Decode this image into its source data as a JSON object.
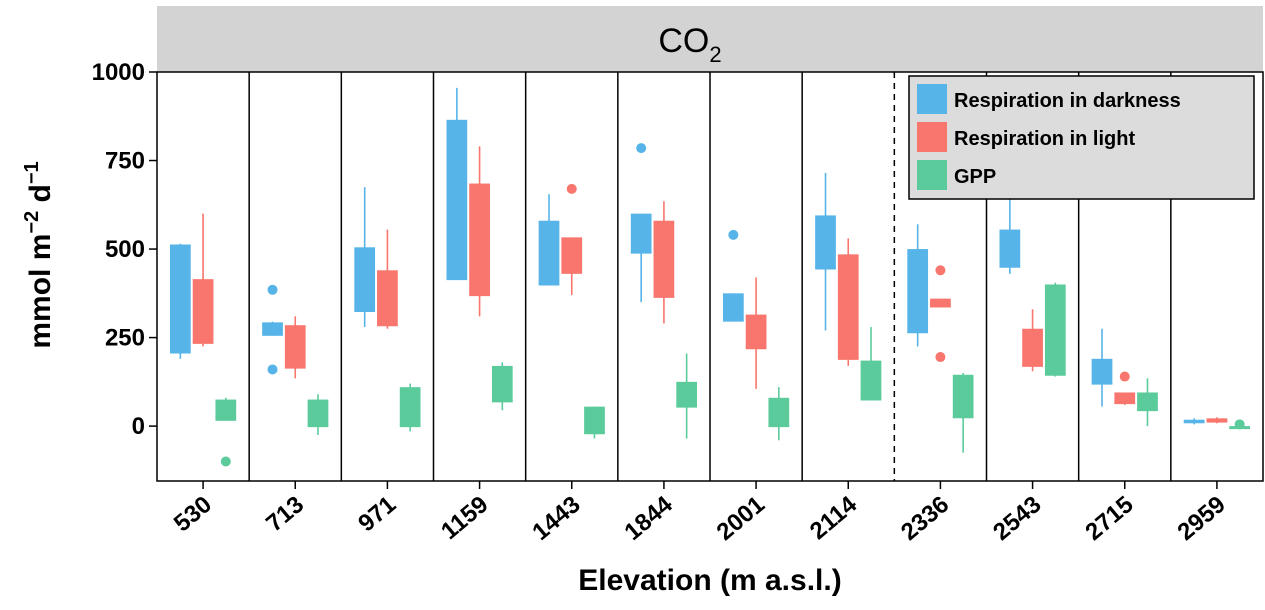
{
  "chart_data": {
    "type": "boxplot",
    "strip_label": "CO",
    "strip_subscript": "2",
    "xlabel": "Elevation (m a.s.l.)",
    "ylabel": "mmol m",
    "ylabel_sup1": "−2",
    "ylabel_mid": " d",
    "ylabel_sup2": "−1",
    "ylim": [
      -155,
      1000
    ],
    "yticks": [
      0,
      250,
      500,
      750,
      1000
    ],
    "dashed_separator_after": "2114",
    "legend_position": "top-right",
    "categories": [
      "530",
      "713",
      "971",
      "1159",
      "1443",
      "1844",
      "2001",
      "2114",
      "2336",
      "2543",
      "2715",
      "2959"
    ],
    "series": [
      {
        "name": "Respiration in darkness",
        "color": "#56B4E9",
        "boxes": [
          {
            "whisker_low": 190,
            "q1": 205,
            "median": 510,
            "q3": 510,
            "whisker_high": 515,
            "outliers": []
          },
          {
            "whisker_low": 255,
            "q1": 255,
            "median": 290,
            "q3": 290,
            "whisker_high": 295,
            "outliers": [
              385,
              160
            ]
          },
          {
            "whisker_low": 280,
            "q1": 325,
            "median": 325,
            "q3": 505,
            "whisker_high": 675,
            "outliers": []
          },
          {
            "whisker_low": 415,
            "q1": 415,
            "median": 415,
            "q3": 865,
            "whisker_high": 955,
            "outliers": []
          },
          {
            "whisker_low": 400,
            "q1": 400,
            "median": 400,
            "q3": 580,
            "whisker_high": 655,
            "outliers": []
          },
          {
            "whisker_low": 350,
            "q1": 490,
            "median": 490,
            "q3": 600,
            "whisker_high": 600,
            "outliers": [
              785
            ]
          },
          {
            "whisker_low": 295,
            "q1": 295,
            "median": 300,
            "q3": 375,
            "whisker_high": 375,
            "outliers": [
              540
            ]
          },
          {
            "whisker_low": 270,
            "q1": 445,
            "median": 445,
            "q3": 595,
            "whisker_high": 715,
            "outliers": []
          },
          {
            "whisker_low": 225,
            "q1": 265,
            "median": 265,
            "q3": 500,
            "whisker_high": 570,
            "outliers": []
          },
          {
            "whisker_low": 430,
            "q1": 450,
            "median": 450,
            "q3": 555,
            "whisker_high": 645,
            "outliers": []
          },
          {
            "whisker_low": 55,
            "q1": 120,
            "median": 120,
            "q3": 190,
            "whisker_high": 275,
            "outliers": []
          },
          {
            "whisker_low": 5,
            "q1": 8,
            "median": 12,
            "q3": 18,
            "whisker_high": 22,
            "outliers": []
          }
        ]
      },
      {
        "name": "Respiration in light",
        "color": "#F8766D",
        "boxes": [
          {
            "whisker_low": 225,
            "q1": 235,
            "median": 235,
            "q3": 415,
            "whisker_high": 600,
            "outliers": []
          },
          {
            "whisker_low": 135,
            "q1": 165,
            "median": 165,
            "q3": 285,
            "whisker_high": 310,
            "outliers": []
          },
          {
            "whisker_low": 275,
            "q1": 285,
            "median": 285,
            "q3": 440,
            "whisker_high": 555,
            "outliers": []
          },
          {
            "whisker_low": 310,
            "q1": 370,
            "median": 370,
            "q3": 685,
            "whisker_high": 790,
            "outliers": []
          },
          {
            "whisker_low": 370,
            "q1": 430,
            "median": 530,
            "q3": 530,
            "whisker_high": 530,
            "outliers": [
              670
            ]
          },
          {
            "whisker_low": 290,
            "q1": 365,
            "median": 365,
            "q3": 580,
            "whisker_high": 635,
            "outliers": []
          },
          {
            "whisker_low": 105,
            "q1": 220,
            "median": 220,
            "q3": 315,
            "whisker_high": 420,
            "outliers": []
          },
          {
            "whisker_low": 170,
            "q1": 190,
            "median": 190,
            "q3": 485,
            "whisker_high": 530,
            "outliers": []
          },
          {
            "whisker_low": 335,
            "q1": 335,
            "median": 345,
            "q3": 360,
            "whisker_high": 360,
            "outliers": [
              440,
              195
            ]
          },
          {
            "whisker_low": 155,
            "q1": 170,
            "median": 170,
            "q3": 275,
            "whisker_high": 330,
            "outliers": []
          },
          {
            "whisker_low": 60,
            "q1": 65,
            "median": 65,
            "q3": 95,
            "whisker_high": 95,
            "outliers": [
              140
            ]
          },
          {
            "whisker_low": 8,
            "q1": 10,
            "median": 15,
            "q3": 22,
            "whisker_high": 25,
            "outliers": []
          }
        ]
      },
      {
        "name": "GPP",
        "color": "#5CCB9C",
        "boxes": [
          {
            "whisker_low": 15,
            "q1": 15,
            "median": 60,
            "q3": 75,
            "whisker_high": 80,
            "outliers": [
              -100
            ]
          },
          {
            "whisker_low": -25,
            "q1": 0,
            "median": 0,
            "q3": 75,
            "whisker_high": 90,
            "outliers": []
          },
          {
            "whisker_low": -15,
            "q1": 0,
            "median": 0,
            "q3": 110,
            "whisker_high": 120,
            "outliers": []
          },
          {
            "whisker_low": 45,
            "q1": 70,
            "median": 70,
            "q3": 170,
            "whisker_high": 180,
            "outliers": []
          },
          {
            "whisker_low": -35,
            "q1": -20,
            "median": -20,
            "q3": 55,
            "whisker_high": 55,
            "outliers": []
          },
          {
            "whisker_low": -35,
            "q1": 55,
            "median": 55,
            "q3": 125,
            "whisker_high": 205,
            "outliers": []
          },
          {
            "whisker_low": -40,
            "q1": 0,
            "median": 0,
            "q3": 80,
            "whisker_high": 110,
            "outliers": []
          },
          {
            "whisker_low": 75,
            "q1": 75,
            "median": 75,
            "q3": 185,
            "whisker_high": 280,
            "outliers": []
          },
          {
            "whisker_low": -75,
            "q1": 25,
            "median": 25,
            "q3": 145,
            "whisker_high": 150,
            "outliers": []
          },
          {
            "whisker_low": 140,
            "q1": 145,
            "median": 145,
            "q3": 400,
            "whisker_high": 405,
            "outliers": []
          },
          {
            "whisker_low": 0,
            "q1": 45,
            "median": 45,
            "q3": 95,
            "whisker_high": 135,
            "outliers": []
          },
          {
            "whisker_low": -8,
            "q1": -8,
            "median": -5,
            "q3": 0,
            "whisker_high": 5,
            "outliers": [
              5
            ]
          }
        ]
      }
    ]
  }
}
